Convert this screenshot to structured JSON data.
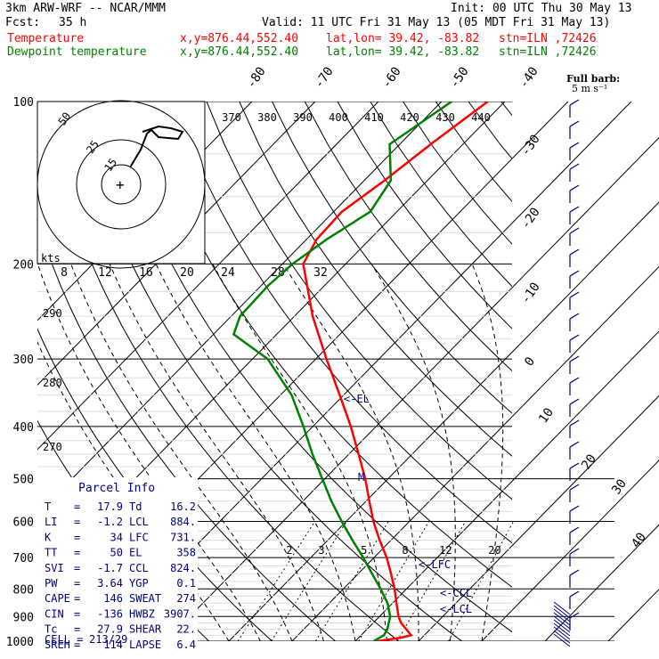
{
  "header": {
    "model": "3km ARW-WRF -- NCAR/MMM",
    "init": "Init: 00 UTC Thu 30 May 13",
    "fcst_label": "Fcst:",
    "fcst_value": "35 h",
    "valid": "Valid: 11 UTC Fri 31 May 13 (05 MDT Fri 31 May 13)",
    "temp_label": "Temperature",
    "dew_label": "Dewpoint temperature",
    "xy": "x,y=876.44,552.40",
    "latlon": "lat,lon= 39.42, -83.82",
    "stn": "stn=ILN ,72426"
  },
  "colors": {
    "temperature": "#ff0000",
    "dewpoint": "#008000",
    "barbs": "#000080",
    "text": "#000000"
  },
  "chart_data": {
    "type": "line",
    "title": "3km ARW-WRF -- NCAR/MMM",
    "pressure_ticks": [
      100,
      200,
      300,
      400,
      500,
      600,
      700,
      800,
      900,
      1000
    ],
    "isotherm_labels": [
      -80,
      -70,
      -60,
      -50,
      -40,
      -30,
      -20,
      -10,
      0,
      10,
      20,
      30,
      40
    ],
    "theta_labels": [
      270,
      280,
      290
    ],
    "theta_e_labels": [
      370,
      380,
      390,
      400,
      410,
      420,
      430,
      440
    ],
    "mixing_ratio_labels": [
      2,
      3,
      5,
      8,
      12,
      20
    ],
    "wind_speed_labels": [
      8,
      12,
      16,
      20,
      24,
      28,
      32
    ],
    "hodo_unit": "kts",
    "hodo_ring_labels": [
      15,
      25,
      50
    ],
    "barb_legend": {
      "title": "Full barb:",
      "value": "5 m s⁻¹"
    },
    "levels": {
      "el": "<-EL",
      "lfc": "<-LFC",
      "ccl": "<-CCL",
      "lcl": "<-LCL",
      "m": "M"
    },
    "series": [
      {
        "name": "Temperature",
        "points": [
          [
            1000,
            13.5
          ],
          [
            985,
            16.7
          ],
          [
            975,
            17.9
          ],
          [
            950,
            16.2
          ],
          [
            925,
            14.4
          ],
          [
            900,
            13.0
          ],
          [
            850,
            10.6
          ],
          [
            800,
            8.1
          ],
          [
            750,
            5.2
          ],
          [
            700,
            2.0
          ],
          [
            650,
            -1.8
          ],
          [
            600,
            -5.7
          ],
          [
            550,
            -9.5
          ],
          [
            500,
            -13.6
          ],
          [
            450,
            -18.5
          ],
          [
            400,
            -24.0
          ],
          [
            350,
            -30.6
          ],
          [
            300,
            -38.3
          ],
          [
            250,
            -47.1
          ],
          [
            200,
            -56.7
          ],
          [
            180,
            -58.4
          ],
          [
            160,
            -58.7
          ],
          [
            140,
            -56.8
          ],
          [
            120,
            -55.1
          ],
          [
            100,
            -52.7
          ]
        ]
      },
      {
        "name": "Dewpoint temperature",
        "points": [
          [
            1000,
            12.9
          ],
          [
            975,
            13.6
          ],
          [
            950,
            13.2
          ],
          [
            900,
            11.7
          ],
          [
            850,
            9.2
          ],
          [
            800,
            5.9
          ],
          [
            750,
            2.2
          ],
          [
            700,
            -1.7
          ],
          [
            650,
            -6.1
          ],
          [
            600,
            -10.7
          ],
          [
            550,
            -15.5
          ],
          [
            500,
            -20.4
          ],
          [
            450,
            -25.8
          ],
          [
            400,
            -31.5
          ],
          [
            350,
            -38.2
          ],
          [
            300,
            -47.6
          ],
          [
            270,
            -56.8
          ],
          [
            250,
            -58.6
          ],
          [
            220,
            -58.9
          ],
          [
            200,
            -58.4
          ],
          [
            180,
            -56.8
          ],
          [
            160,
            -54.2
          ],
          [
            140,
            -55.8
          ],
          [
            120,
            -61.6
          ],
          [
            100,
            -58.4
          ]
        ]
      }
    ]
  },
  "parcel_info": {
    "title": "Parcel Info",
    "rows": [
      {
        "l": "T",
        "lv": "17.9",
        "r": "Td",
        "rv": "16.2"
      },
      {
        "l": "LI",
        "lv": "-1.2",
        "r": "LCL",
        "rv": "884."
      },
      {
        "l": "K",
        "lv": "34",
        "r": "LFC",
        "rv": "731."
      },
      {
        "l": "TT",
        "lv": "50",
        "r": "EL",
        "rv": "358"
      },
      {
        "l": "SVI",
        "lv": "-1.7",
        "r": "CCL",
        "rv": "824."
      },
      {
        "l": "PW",
        "lv": "3.64",
        "r": "YGP",
        "rv": "0.1"
      },
      {
        "l": "CAPE",
        "lv": "146",
        "r": "SWEAT",
        "rv": "274"
      },
      {
        "l": "CIN",
        "lv": "-136",
        "r": "HWBZ",
        "rv": "3907."
      },
      {
        "l": "Tc",
        "lv": "27.9",
        "r": "SHEAR",
        "rv": "22."
      },
      {
        "l": "SREH",
        "lv": "114",
        "r": "LAPSE",
        "rv": "6.4"
      }
    ],
    "cell_label": "CELL =",
    "cell_value": "213/29"
  }
}
